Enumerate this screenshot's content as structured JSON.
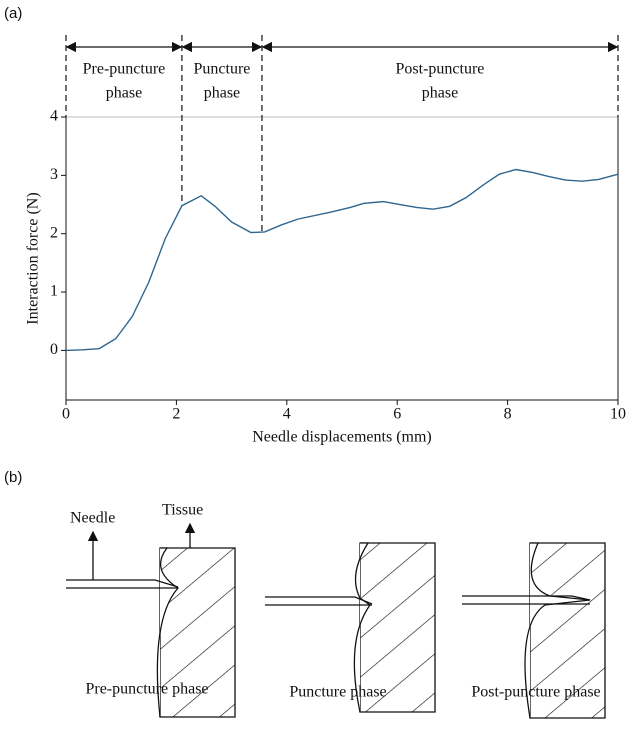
{
  "panels": [
    "(a)",
    "(b)"
  ],
  "chart_data": {
    "type": "line",
    "x_label": "Needle displacements (mm)",
    "y_label": "Interaction force (N)",
    "x": [
      0,
      0.3,
      0.6,
      0.9,
      1.2,
      1.5,
      1.8,
      2.1,
      2.45,
      2.7,
      3.0,
      3.35,
      3.6,
      3.9,
      4.2,
      4.8,
      5.15,
      5.4,
      5.75,
      6.05,
      6.35,
      6.65,
      6.95,
      7.25,
      7.55,
      7.85,
      8.15,
      8.45,
      8.75,
      9.05,
      9.35,
      9.65,
      10
    ],
    "values": [
      0,
      0.01,
      0.03,
      0.2,
      0.58,
      1.17,
      1.92,
      2.48,
      2.65,
      2.47,
      2.2,
      2.02,
      2.03,
      2.15,
      2.25,
      2.37,
      2.45,
      2.52,
      2.55,
      2.5,
      2.45,
      2.42,
      2.47,
      2.62,
      2.83,
      3.02,
      3.1,
      3.05,
      2.98,
      2.92,
      2.9,
      2.93,
      3.02
    ],
    "color": "#2f6690",
    "xlim": [
      0,
      10
    ],
    "xticks": [
      0,
      2,
      4,
      6,
      8,
      10
    ],
    "ylim": [
      -0.85,
      4
    ],
    "yticks": [
      0,
      1,
      2,
      3,
      4
    ],
    "boundaries": [
      0,
      2.1,
      3.55,
      10
    ],
    "phases": [
      [
        "Pre-puncture",
        "phase"
      ],
      [
        "Puncture",
        "phase"
      ],
      [
        "Post-puncture",
        "phase"
      ]
    ]
  },
  "diagram": {
    "needle_label": "Needle",
    "tissue_label": "Tissue",
    "captions": [
      "Pre-puncture phase",
      "Puncture phase",
      "Post-puncture phase"
    ]
  }
}
